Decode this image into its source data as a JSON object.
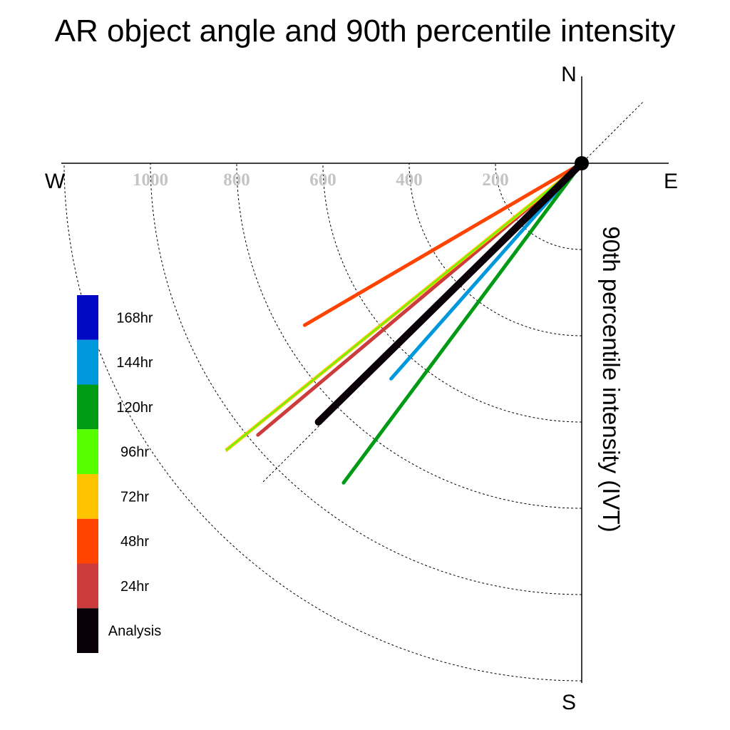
{
  "chart_data": {
    "type": "polar-vector",
    "title": "AR object angle and 90th percentile intensity",
    "ylabel": "90th percentile intensity (IVT)",
    "directions": {
      "north": "N",
      "south": "S",
      "east": "E",
      "west": "W"
    },
    "radial_ticks": [
      200,
      400,
      600,
      800,
      1000
    ],
    "radial_ticks_drawn": [
      200,
      400,
      600,
      800,
      1000,
      1200
    ],
    "radial_max": 1200,
    "grid": true,
    "legend_position": "left",
    "series": [
      {
        "name": "Analysis",
        "color": "#0a0008",
        "angle_deg": 225.5,
        "intensity": 856,
        "width": 10
      },
      {
        "name": "24hr",
        "color": "#cc3c3c",
        "angle_deg": 230.0,
        "intensity": 980,
        "width": 5
      },
      {
        "name": "48hr",
        "color": "#ff4400",
        "angle_deg": 239.7,
        "intensity": 744,
        "width": 5
      },
      {
        "name": "72hr",
        "color": "#ffc400",
        "angle_deg": 231.1,
        "intensity": 1073,
        "width": 5
      },
      {
        "name": "96hr",
        "color": "#55ff00",
        "angle_deg": 231.1,
        "intensity": 1073,
        "width": 2
      },
      {
        "name": "120hr",
        "color": "#009a14",
        "angle_deg": 216.7,
        "intensity": 924,
        "width": 5
      },
      {
        "name": "144hr",
        "color": "#0098dc",
        "angle_deg": 221.5,
        "intensity": 667,
        "width": 5
      },
      {
        "name": "168hr",
        "color": "#0008c4",
        "angle_deg": 226.0,
        "intensity": 650,
        "width": 3
      }
    ],
    "legend": [
      {
        "label": "168hr",
        "color": "#0008c4"
      },
      {
        "label": "144hr",
        "color": "#0098dc"
      },
      {
        "label": "120hr",
        "color": "#009a14"
      },
      {
        "label": "96hr",
        "color": "#55ff00"
      },
      {
        "label": "72hr",
        "color": "#ffc400"
      },
      {
        "label": "48hr",
        "color": "#ff4400"
      },
      {
        "label": "24hr",
        "color": "#cc3c3c"
      },
      {
        "label": "Analysis",
        "color": "#0a0008"
      }
    ]
  }
}
